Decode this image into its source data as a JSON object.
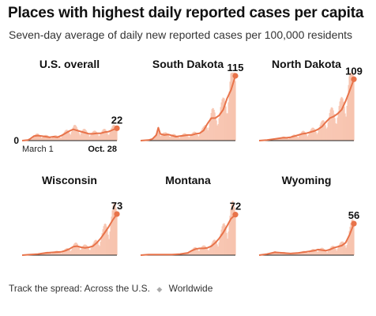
{
  "header": {
    "title": "Places with highest daily reported cases per capita",
    "subtitle": "Seven-day average of daily new reported cases per 100,000 residents"
  },
  "footer": {
    "label": "Track the spread:",
    "link_us": "Across the U.S.",
    "separator": "◆",
    "link_world": "Worldwide"
  },
  "colors": {
    "line": "#e8734a",
    "bars": "#f7c3ae",
    "dot": "#e8734a",
    "axis": "#222222"
  },
  "chart_data": [
    {
      "type": "line",
      "title": "U.S. overall",
      "ylim": [
        0,
        115
      ],
      "y_min_label": "0",
      "x_tick_labels": [
        "March 1",
        "Oct. 28"
      ],
      "end_label": "22",
      "x": [
        0,
        15,
        20,
        30,
        40,
        50,
        60,
        70,
        80,
        90,
        100,
        110,
        120,
        130,
        140,
        150,
        160,
        170,
        180,
        190,
        200,
        210,
        220,
        230,
        241
      ],
      "y": [
        0,
        1,
        3,
        8,
        9,
        8,
        7,
        6,
        7,
        6,
        9,
        13,
        17,
        20,
        18,
        16,
        14,
        12,
        12,
        13,
        13,
        15,
        16,
        19,
        22
      ]
    },
    {
      "type": "line",
      "title": "South Dakota",
      "ylim": [
        0,
        115
      ],
      "end_label": "115",
      "x": [
        0,
        20,
        30,
        40,
        45,
        50,
        60,
        70,
        80,
        90,
        100,
        110,
        120,
        130,
        140,
        150,
        160,
        170,
        180,
        190,
        200,
        210,
        220,
        230,
        241
      ],
      "y": [
        0,
        1,
        3,
        10,
        23,
        12,
        10,
        11,
        9,
        7,
        8,
        9,
        10,
        10,
        12,
        13,
        18,
        30,
        40,
        40,
        45,
        55,
        75,
        90,
        115
      ]
    },
    {
      "type": "line",
      "title": "North Dakota",
      "ylim": [
        0,
        115
      ],
      "end_label": "109",
      "x": [
        0,
        20,
        40,
        50,
        60,
        70,
        80,
        90,
        100,
        110,
        120,
        130,
        140,
        150,
        160,
        170,
        180,
        190,
        200,
        210,
        220,
        230,
        241
      ],
      "y": [
        0,
        1,
        3,
        4,
        5,
        5,
        6,
        8,
        10,
        12,
        13,
        15,
        17,
        20,
        25,
        33,
        40,
        43,
        48,
        55,
        70,
        88,
        109
      ]
    },
    {
      "type": "line",
      "title": "Wisconsin",
      "ylim": [
        0,
        115
      ],
      "end_label": "73",
      "x": [
        0,
        20,
        40,
        60,
        80,
        100,
        110,
        120,
        130,
        140,
        150,
        160,
        170,
        180,
        190,
        200,
        210,
        220,
        230,
        241
      ],
      "y": [
        0,
        1,
        2,
        4,
        5,
        6,
        8,
        11,
        15,
        16,
        14,
        13,
        14,
        16,
        22,
        30,
        40,
        50,
        62,
        73
      ]
    },
    {
      "type": "line",
      "title": "Montana",
      "ylim": [
        0,
        115
      ],
      "end_label": "72",
      "x": [
        0,
        20,
        40,
        60,
        80,
        100,
        120,
        130,
        140,
        150,
        160,
        170,
        180,
        190,
        200,
        210,
        220,
        230,
        241
      ],
      "y": [
        0,
        1,
        1,
        1,
        1,
        2,
        4,
        8,
        11,
        12,
        12,
        13,
        16,
        22,
        30,
        40,
        52,
        65,
        72
      ]
    },
    {
      "type": "line",
      "title": "Wyoming",
      "ylim": [
        0,
        115
      ],
      "end_label": "56",
      "x": [
        0,
        20,
        40,
        60,
        80,
        100,
        120,
        140,
        150,
        160,
        170,
        180,
        190,
        200,
        210,
        220,
        230,
        241
      ],
      "y": [
        0,
        2,
        5,
        4,
        3,
        4,
        6,
        8,
        10,
        9,
        8,
        10,
        13,
        15,
        17,
        22,
        36,
        56
      ]
    }
  ]
}
